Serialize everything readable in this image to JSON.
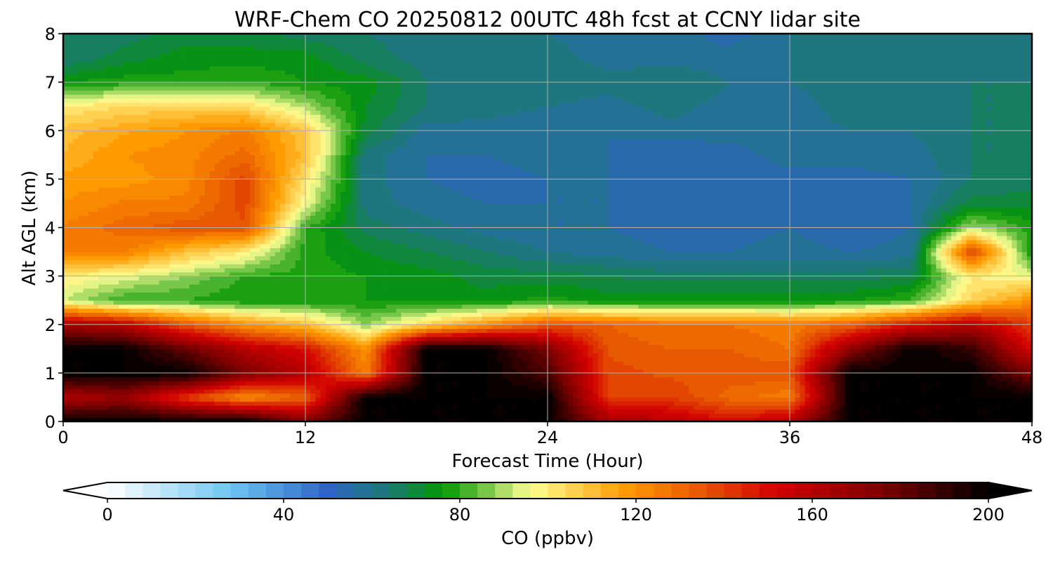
{
  "chart_data": {
    "type": "heatmap",
    "title": "WRF-Chem CO  20250812 00UTC 48h fcst at CCNY lidar site",
    "xlabel": "Forecast Time (Hour)",
    "ylabel": "Alt AGL (km)",
    "xlim": [
      0,
      48
    ],
    "ylim": [
      0,
      8
    ],
    "xticks": [
      0,
      12,
      24,
      36,
      48
    ],
    "yticks": [
      0,
      1,
      2,
      3,
      4,
      5,
      6,
      7,
      8
    ],
    "grid": true,
    "colorbar": {
      "label": "CO  (ppbv)",
      "min": 0,
      "max": 200,
      "ticks": [
        0,
        40,
        80,
        120,
        160,
        200
      ],
      "extend": "both",
      "levels": 50,
      "stops": [
        {
          "value": 0,
          "color": "#ffffff"
        },
        {
          "value": 28,
          "color": "#6ec6f2"
        },
        {
          "value": 50,
          "color": "#2e64c4"
        },
        {
          "value": 64,
          "color": "#1b7a72"
        },
        {
          "value": 76,
          "color": "#039603"
        },
        {
          "value": 86,
          "color": "#79c74a"
        },
        {
          "value": 96,
          "color": "#ffff96"
        },
        {
          "value": 118,
          "color": "#ff9a00"
        },
        {
          "value": 134,
          "color": "#e85a00"
        },
        {
          "value": 152,
          "color": "#d20000"
        },
        {
          "value": 176,
          "color": "#780000"
        },
        {
          "value": 200,
          "color": "#000000"
        }
      ]
    },
    "x_hours": [
      0,
      3,
      6,
      9,
      12,
      15,
      18,
      21,
      24,
      27,
      30,
      33,
      36,
      39,
      42,
      45,
      48
    ],
    "y_km": [
      0,
      0.5,
      1,
      1.5,
      2,
      2.5,
      3,
      3.5,
      4,
      4.5,
      5,
      5.5,
      6,
      6.5,
      7,
      7.5,
      8
    ],
    "z_ppbv": [
      [
        200,
        200,
        200,
        200,
        175,
        200,
        200,
        200,
        200,
        165,
        160,
        150,
        160,
        200,
        200,
        200,
        200
      ],
      [
        160,
        168,
        140,
        120,
        132,
        200,
        200,
        200,
        200,
        140,
        140,
        130,
        125,
        200,
        200,
        200,
        200
      ],
      [
        200,
        200,
        200,
        175,
        160,
        125,
        200,
        200,
        185,
        138,
        135,
        135,
        135,
        200,
        200,
        200,
        175
      ],
      [
        200,
        200,
        180,
        160,
        150,
        120,
        200,
        200,
        175,
        135,
        132,
        132,
        128,
        170,
        200,
        190,
        150
      ],
      [
        165,
        158,
        135,
        120,
        110,
        88,
        105,
        120,
        135,
        132,
        128,
        128,
        125,
        132,
        150,
        160,
        140
      ],
      [
        92,
        80,
        80,
        76,
        76,
        76,
        74,
        74,
        78,
        74,
        74,
        74,
        74,
        76,
        80,
        105,
        120
      ],
      [
        100,
        95,
        88,
        80,
        78,
        76,
        74,
        70,
        70,
        68,
        66,
        66,
        66,
        66,
        68,
        100,
        95
      ],
      [
        125,
        125,
        110,
        100,
        78,
        72,
        68,
        64,
        60,
        58,
        56,
        56,
        58,
        56,
        58,
        140,
        75
      ],
      [
        125,
        130,
        135,
        135,
        80,
        66,
        62,
        58,
        56,
        56,
        54,
        54,
        56,
        52,
        56,
        90,
        78
      ],
      [
        120,
        125,
        125,
        138,
        96,
        62,
        58,
        56,
        56,
        56,
        52,
        54,
        55,
        52,
        56,
        70,
        70
      ],
      [
        118,
        118,
        122,
        138,
        102,
        62,
        56,
        54,
        56,
        56,
        52,
        54,
        54,
        54,
        56,
        64,
        66
      ],
      [
        112,
        120,
        122,
        130,
        110,
        62,
        56,
        56,
        58,
        56,
        52,
        54,
        58,
        58,
        58,
        64,
        64
      ],
      [
        110,
        115,
        120,
        125,
        108,
        70,
        58,
        58,
        56,
        56,
        58,
        58,
        58,
        60,
        60,
        64,
        64
      ],
      [
        100,
        104,
        106,
        104,
        90,
        72,
        64,
        62,
        60,
        58,
        62,
        58,
        58,
        62,
        62,
        64,
        64
      ],
      [
        76,
        78,
        78,
        80,
        76,
        74,
        64,
        62,
        64,
        62,
        64,
        60,
        60,
        62,
        62,
        64,
        64
      ],
      [
        64,
        70,
        74,
        74,
        74,
        66,
        62,
        62,
        62,
        58,
        58,
        58,
        60,
        62,
        62,
        62,
        62
      ],
      [
        64,
        66,
        70,
        70,
        66,
        64,
        62,
        62,
        60,
        58,
        58,
        54,
        60,
        60,
        62,
        62,
        62
      ]
    ]
  }
}
